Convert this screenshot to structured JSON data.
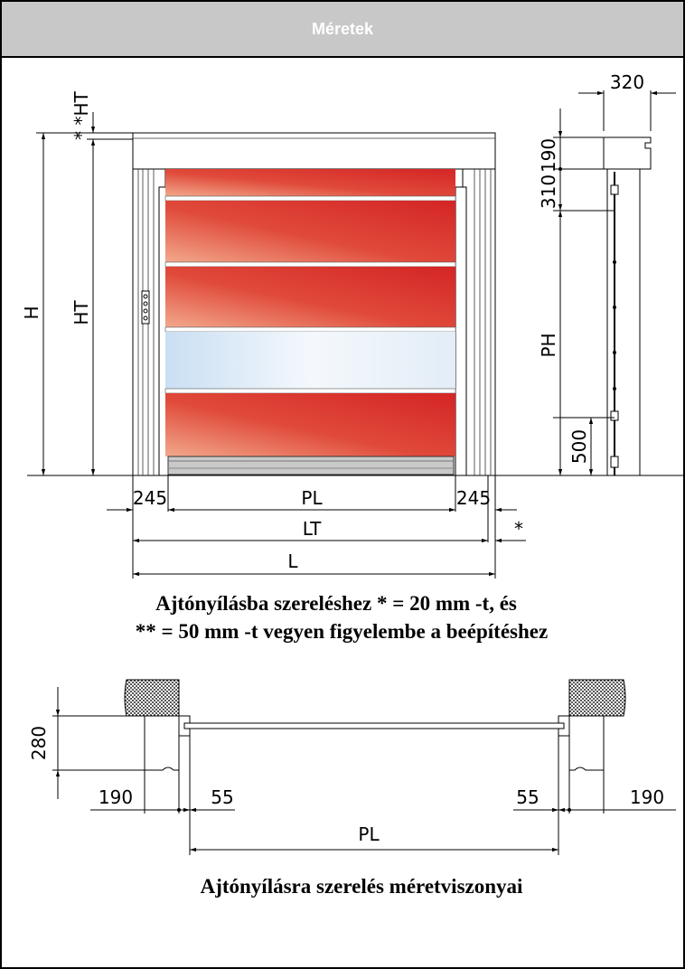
{
  "header": {
    "title": "Méretek"
  },
  "front_view": {
    "labels": {
      "H": "H",
      "HT": "HT",
      "double_star_HT": "* *HT",
      "PL": "PL",
      "LT": "LT",
      "L": "L",
      "left_245": "245",
      "right_245": "245",
      "star": "*"
    }
  },
  "side_view": {
    "labels": {
      "d320": "320",
      "d190": "190",
      "d310": "310",
      "PH": "PH",
      "d500": "500"
    }
  },
  "caption_top": {
    "line1": "Ajtónyílásba szereléshez * = 20 mm -t, és",
    "line2": "** = 50 mm -t vegyen figyelembe a beépítéshez"
  },
  "plan_view": {
    "labels": {
      "d280": "280",
      "left_190": "190",
      "left_55": "55",
      "right_55": "55",
      "right_190": "190",
      "PL": "PL"
    }
  },
  "caption_bottom": "Ajtónyílásra szerelés méretviszonyai",
  "colors": {
    "header_bg": "#c8c8c8",
    "panel_red": "#d93030",
    "panel_light": "#f0b090",
    "window": "#e8f2fa"
  }
}
